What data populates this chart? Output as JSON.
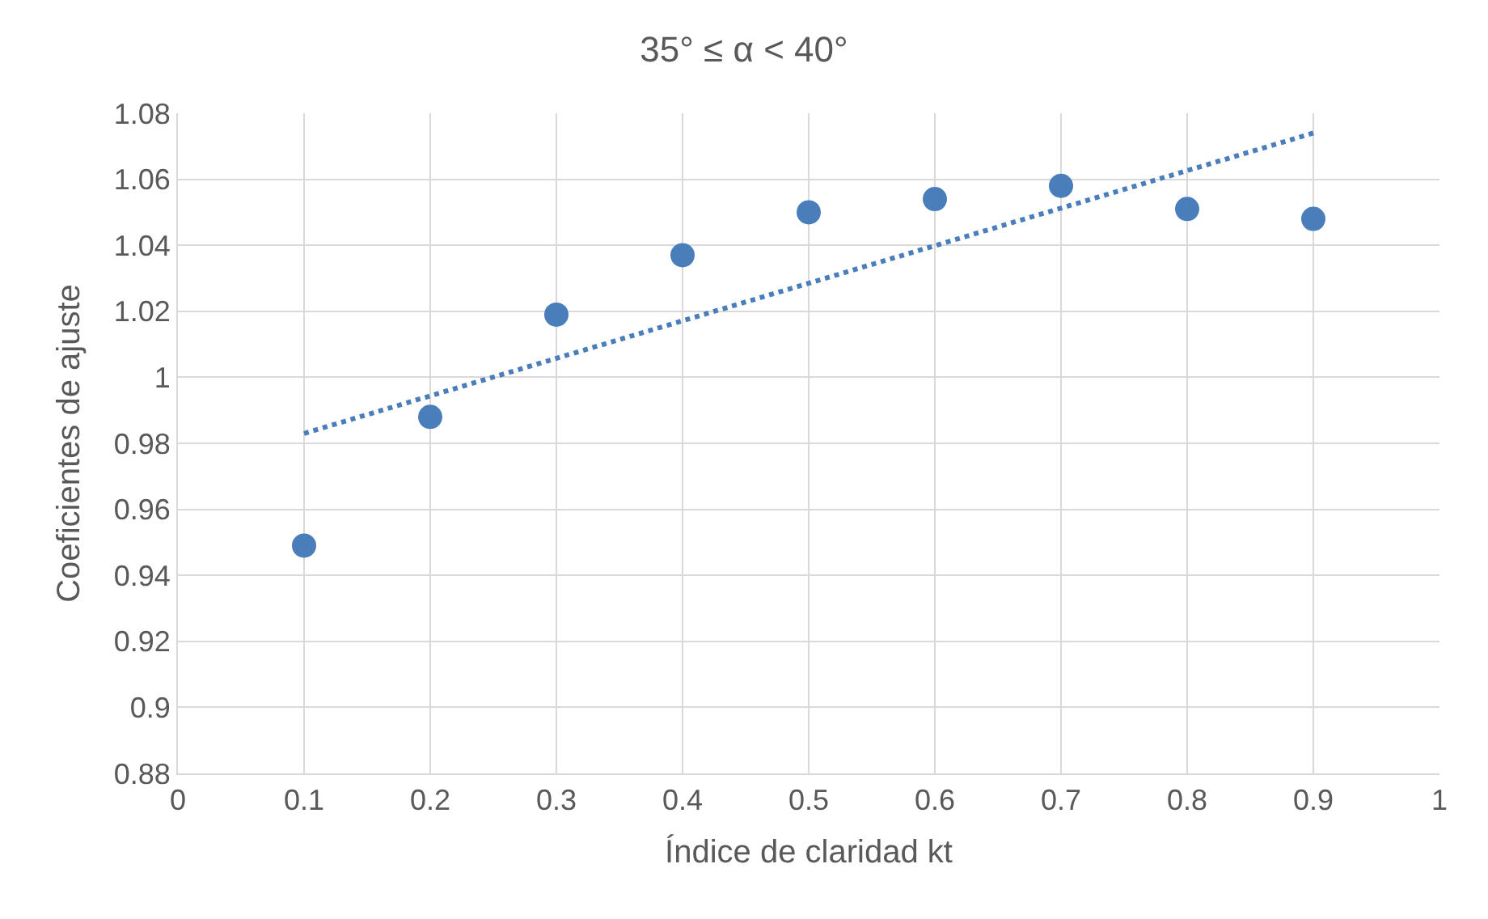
{
  "chart_data": {
    "type": "scatter",
    "title": "35° ≤ α < 40°",
    "xlabel": "Índice de claridad kt",
    "ylabel": "Coeficientes de ajuste",
    "xlim": [
      0,
      1
    ],
    "xticks": [
      0,
      0.1,
      0.2,
      0.3,
      0.4,
      0.5,
      0.6,
      0.7,
      0.8,
      0.9,
      1
    ],
    "ylim": [
      0.88,
      1.08
    ],
    "yticks": [
      0.88,
      0.9,
      0.92,
      0.94,
      0.96,
      0.98,
      1,
      1.02,
      1.04,
      1.06,
      1.08
    ],
    "grid": true,
    "legend": false,
    "series": [
      {
        "color": "#4a7ebb",
        "marker": "circle",
        "x": [
          0.1,
          0.2,
          0.3,
          0.4,
          0.5,
          0.6,
          0.7,
          0.8,
          0.9
        ],
        "values": [
          0.949,
          0.988,
          1.019,
          1.037,
          1.05,
          1.054,
          1.058,
          1.051,
          1.048
        ]
      },
      {
        "type": "line",
        "color": "#4a7ebb",
        "marker": "none",
        "line_style": "dotted",
        "x": [
          0.1,
          0.9
        ],
        "values": [
          0.983,
          1.074
        ]
      }
    ]
  }
}
